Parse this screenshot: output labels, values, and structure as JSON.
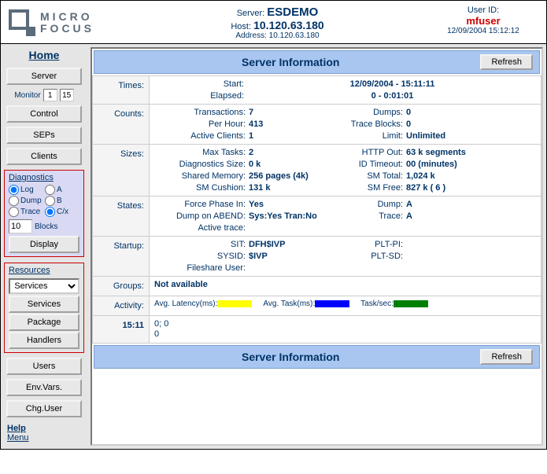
{
  "header": {
    "logo1": "MICRO",
    "logo2": "FOCUS",
    "server_label": "Server:",
    "server_name": "ESDEMO",
    "host_label": "Host:",
    "host": "10.120.63.180",
    "address_label": "Address:",
    "address": "10.120.63.180",
    "userid_label": "User ID:",
    "userid": "mfuser",
    "timestamp": "12/09/2004 15:12:12"
  },
  "sidebar": {
    "home": "Home",
    "server": "Server",
    "monitor_label": "Monitor",
    "monitor_a": "1",
    "monitor_b": "15",
    "control": "Control",
    "seps": "SEPs",
    "clients": "Clients",
    "diag_title": "Diagnostics",
    "diag_log": "Log",
    "diag_a": "A",
    "diag_dump": "Dump",
    "diag_b": "B",
    "diag_trace": "Trace",
    "diag_cx": "C/x",
    "blocks_value": "10",
    "blocks_label": "Blocks",
    "display": "Display",
    "res_title": "Resources",
    "res_select": "Services",
    "res_services": "Services",
    "res_package": "Package",
    "res_handlers": "Handlers",
    "users": "Users",
    "envvars": "Env.Vars.",
    "chguser": "Chg.User",
    "help": "Help",
    "menu": "Menu"
  },
  "panel": {
    "title": "Server Information",
    "refresh": "Refresh",
    "times": {
      "label": "Times:",
      "start_k": "Start:",
      "start_v": "12/09/2004   -   15:11:11",
      "elapsed_k": "Elapsed:",
      "elapsed_v": "0   -   0:01:01"
    },
    "counts": {
      "label": "Counts:",
      "trans_k": "Transactions:",
      "trans_v": "7",
      "dumps_k": "Dumps:",
      "dumps_v": "0",
      "perhr_k": "Per Hour:",
      "perhr_v": "413",
      "trace_k": "Trace Blocks:",
      "trace_v": "0",
      "clients_k": "Active Clients:",
      "clients_v": "1",
      "limit_k": "Limit:",
      "limit_v": "Unlimited"
    },
    "sizes": {
      "label": "Sizes:",
      "maxtasks_k": "Max Tasks:",
      "maxtasks_v": "2",
      "httpout_k": "HTTP Out:",
      "httpout_v": "63 k segments",
      "diagsize_k": "Diagnostics Size:",
      "diagsize_v": "0 k",
      "idtime_k": "ID Timeout:",
      "idtime_v": "00 (minutes)",
      "shmem_k": "Shared Memory:",
      "shmem_v": "256 pages (4k)",
      "smtot_k": "SM Total:",
      "smtot_v": "1,024 k",
      "smcush_k": "SM Cushion:",
      "smcush_v": "131 k",
      "smfree_k": "SM Free:",
      "smfree_v": "827 k  ( 6 )"
    },
    "states": {
      "label": "States:",
      "force_k": "Force Phase In:",
      "force_v": "Yes",
      "dump_k": "Dump:",
      "dump_v": "A",
      "abend_k": "Dump on ABEND:",
      "abend_v": "Sys:Yes Tran:No",
      "trace_k": "Trace:",
      "trace_v": "A",
      "active_k": "Active trace:",
      "active_v": ""
    },
    "startup": {
      "label": "Startup:",
      "sit_k": "SIT:",
      "sit_v": "DFH$IVP",
      "pltpi_k": "PLT-PI:",
      "pltpi_v": "",
      "sysid_k": "SYSID:",
      "sysid_v": "$IVP",
      "pltsd_k": "PLT-SD:",
      "pltsd_v": "",
      "fsu_k": "Fileshare User:",
      "fsu_v": ""
    },
    "groups": {
      "label": "Groups:",
      "value": "Not available"
    },
    "activity": {
      "label": "Activity:",
      "lat_label": "Avg. Latency(ms):",
      "lat_color": "#ffff00",
      "task_label": "Avg. Task(ms):",
      "task_color": "#0000ff",
      "tps_label": "Task/sec:",
      "tps_color": "#008000",
      "hist_time": "15:11",
      "hist_v1": "0; 0",
      "hist_v2": "0"
    }
  }
}
